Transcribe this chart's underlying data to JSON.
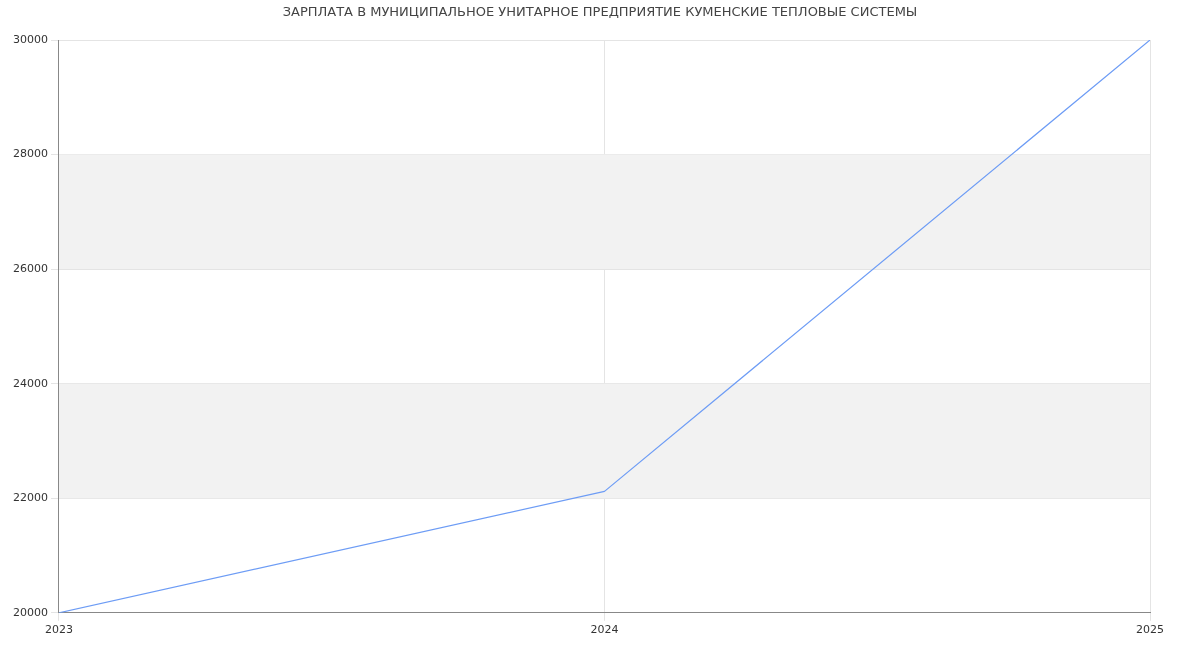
{
  "chart_data": {
    "type": "line",
    "title": "ЗАРПЛАТА В МУНИЦИПАЛЬНОЕ УНИТАРНОЕ ПРЕДПРИЯТИЕ КУМЕНСКИЕ ТЕПЛОВЫЕ СИСТЕМЫ",
    "x": [
      2023,
      2024,
      2025
    ],
    "series": [
      {
        "color": "#6d9cf5",
        "values": [
          20000,
          22120,
          30000
        ]
      }
    ],
    "xlim": [
      2023,
      2025
    ],
    "xticks": [
      2023,
      2024,
      2025
    ],
    "ylim": [
      20000,
      30000
    ],
    "yticks": [
      20000,
      22000,
      24000,
      26000,
      28000,
      30000
    ],
    "bands": [
      {
        "axis": "y",
        "from": 22000,
        "to": 24000,
        "color": "#f2f2f2"
      },
      {
        "axis": "y",
        "from": 26000,
        "to": 28000,
        "color": "#f2f2f2"
      }
    ],
    "grid": true,
    "legend": false,
    "marker": "none",
    "line_style": "solid"
  }
}
